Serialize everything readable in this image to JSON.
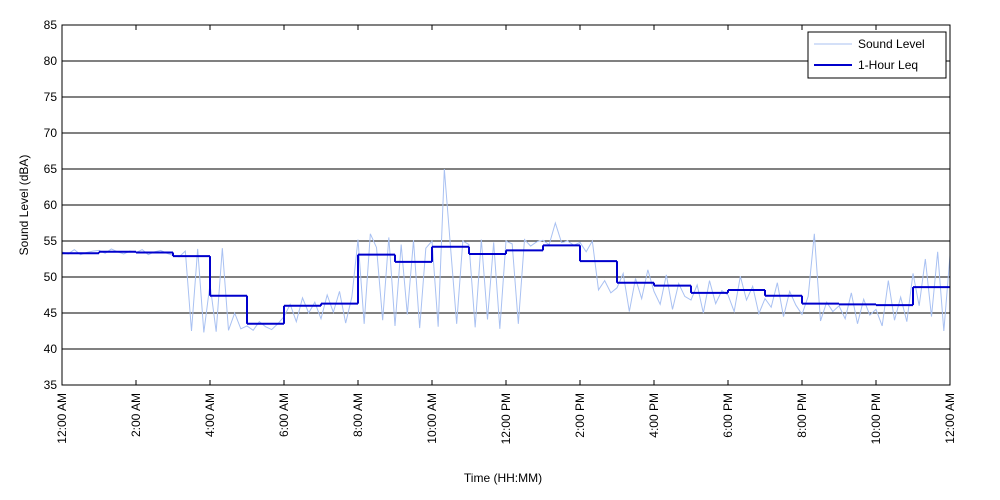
{
  "chart_data": {
    "type": "line",
    "xlabel": "Time (HH:MM)",
    "ylabel": "Sound Level (dBA)",
    "xlim": [
      0,
      1440
    ],
    "ylim": [
      35,
      85
    ],
    "yticks": [
      35,
      40,
      45,
      50,
      55,
      60,
      65,
      70,
      75,
      80,
      85
    ],
    "xticks": [
      {
        "value": 0,
        "label": "12:00 AM"
      },
      {
        "value": 120,
        "label": "2:00 AM"
      },
      {
        "value": 240,
        "label": "4:00 AM"
      },
      {
        "value": 360,
        "label": "6:00 AM"
      },
      {
        "value": 480,
        "label": "8:00 AM"
      },
      {
        "value": 600,
        "label": "10:00 AM"
      },
      {
        "value": 720,
        "label": "12:00 PM"
      },
      {
        "value": 840,
        "label": "2:00 PM"
      },
      {
        "value": 960,
        "label": "4:00 PM"
      },
      {
        "value": 1080,
        "label": "6:00 PM"
      },
      {
        "value": 1200,
        "label": "8:00 PM"
      },
      {
        "value": 1320,
        "label": "10:00 PM"
      },
      {
        "value": 1440,
        "label": "12:00 AM"
      }
    ],
    "grid": true,
    "legend": "upper right",
    "series": [
      {
        "name": "Sound Level",
        "color": "#a9c1f2",
        "style": "line",
        "x": [
          0,
          10,
          20,
          30,
          40,
          50,
          60,
          70,
          80,
          90,
          100,
          110,
          120,
          130,
          140,
          150,
          160,
          170,
          180,
          190,
          200,
          210,
          220,
          230,
          240,
          250,
          260,
          270,
          280,
          290,
          300,
          310,
          320,
          330,
          340,
          350,
          360,
          370,
          380,
          390,
          400,
          410,
          420,
          430,
          440,
          450,
          460,
          470,
          480,
          490,
          500,
          510,
          520,
          530,
          540,
          550,
          560,
          570,
          580,
          590,
          600,
          610,
          620,
          630,
          640,
          650,
          660,
          670,
          680,
          690,
          700,
          710,
          720,
          730,
          740,
          750,
          760,
          770,
          780,
          790,
          800,
          810,
          820,
          830,
          840,
          850,
          860,
          870,
          880,
          890,
          900,
          910,
          920,
          930,
          940,
          950,
          960,
          970,
          980,
          990,
          1000,
          1010,
          1020,
          1030,
          1040,
          1050,
          1060,
          1070,
          1080,
          1090,
          1100,
          1110,
          1120,
          1130,
          1140,
          1150,
          1160,
          1170,
          1180,
          1190,
          1200,
          1210,
          1220,
          1230,
          1240,
          1250,
          1260,
          1270,
          1280,
          1290,
          1300,
          1310,
          1320,
          1330,
          1340,
          1350,
          1360,
          1370,
          1380,
          1390,
          1400,
          1410,
          1420,
          1430,
          1440
        ],
        "values": [
          53.5,
          53.2,
          53.8,
          53.1,
          53.4,
          53.6,
          53.7,
          53.3,
          53.9,
          53.5,
          53.2,
          53.6,
          53.4,
          53.8,
          53.1,
          53.5,
          53.7,
          53.3,
          53.0,
          52.8,
          53.6,
          42.5,
          53.9,
          42.3,
          49,
          42.4,
          54,
          42.6,
          45,
          42.8,
          43.2,
          42.6,
          43.8,
          43.1,
          42.7,
          43.5,
          44.5,
          46.2,
          43.8,
          47.1,
          45.0,
          46.5,
          44.2,
          47.5,
          45.1,
          48.0,
          43.6,
          47.2,
          55.2,
          43.5,
          56.0,
          54.1,
          44.0,
          55.5,
          43.2,
          54.5,
          44.8,
          55.1,
          42.9,
          54.0,
          55.0,
          43.1,
          65.0,
          54.2,
          43.5,
          55.0,
          54.5,
          43.0,
          55.2,
          44.1,
          54.8,
          42.8,
          55.0,
          54.6,
          43.5,
          55.2,
          54.3,
          54.9,
          55.1,
          54.5,
          57.5,
          54.8,
          55.0,
          54.4,
          54.8,
          53.5,
          55.0,
          48.2,
          49.5,
          47.8,
          48.5,
          50.5,
          45.2,
          49.8,
          47.0,
          51.0,
          48.0,
          46.2,
          50.3,
          45.5,
          49.1,
          47.3,
          46.8,
          48.9,
          45.0,
          49.5,
          46.3,
          48.1,
          47.5,
          45.2,
          50.1,
          46.8,
          48.7,
          44.9,
          47.0,
          45.8,
          49.2,
          44.5,
          48.0,
          46.1,
          44.8,
          47.3,
          56.0,
          43.9,
          46.5,
          45.2,
          46.0,
          44.2,
          47.8,
          43.5,
          46.9,
          44.7,
          45.5,
          43.2,
          49.5,
          44.0,
          47.2,
          43.8,
          50.5,
          46.0,
          52.5,
          44.5,
          53.5,
          42.5,
          53.0
        ]
      },
      {
        "name": "1-Hour Leq",
        "color": "#0000cc",
        "style": "step",
        "x": [
          0,
          60,
          120,
          180,
          240,
          300,
          360,
          420,
          480,
          540,
          600,
          660,
          720,
          780,
          840,
          900,
          960,
          1020,
          1080,
          1140,
          1200,
          1260,
          1320,
          1380
        ],
        "values": [
          53.3,
          53.5,
          53.4,
          52.9,
          47.4,
          43.5,
          46.0,
          46.3,
          53.1,
          52.1,
          54.2,
          53.2,
          53.7,
          54.4,
          52.2,
          49.2,
          48.8,
          47.8,
          48.2,
          47.4,
          46.3,
          46.2,
          46.1,
          48.6
        ]
      }
    ]
  }
}
